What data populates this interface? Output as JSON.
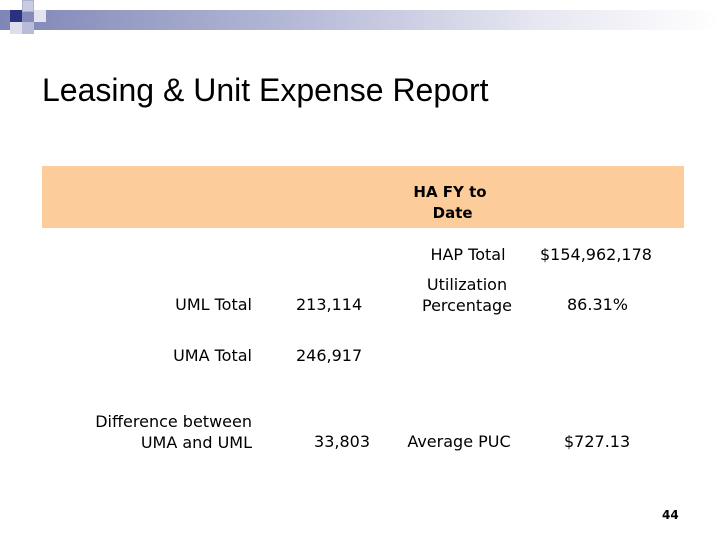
{
  "slide": {
    "title": "Leasing & Unit Expense Report",
    "page_number": "44"
  },
  "table": {
    "header": "HA FY to\n Date",
    "rows": [
      {
        "label_left": "",
        "value_left": "",
        "label_right": "HAP Total",
        "value_right": "$154,962,178"
      },
      {
        "label_left": "UML Total",
        "value_left": "213,114",
        "label_right": "Utilization\nPercentage",
        "value_right": "86.31%"
      },
      {
        "label_left": "UMA Total",
        "value_left": "246,917",
        "label_right": "",
        "value_right": ""
      },
      {
        "label_left": "Difference between\nUMA and UML",
        "value_left": "33,803",
        "label_right": "Average PUC",
        "value_right": "$727.13"
      }
    ]
  },
  "colors": {
    "header_band": "#fccc9a",
    "title_bar_gradient_start": "#7f86b6"
  }
}
